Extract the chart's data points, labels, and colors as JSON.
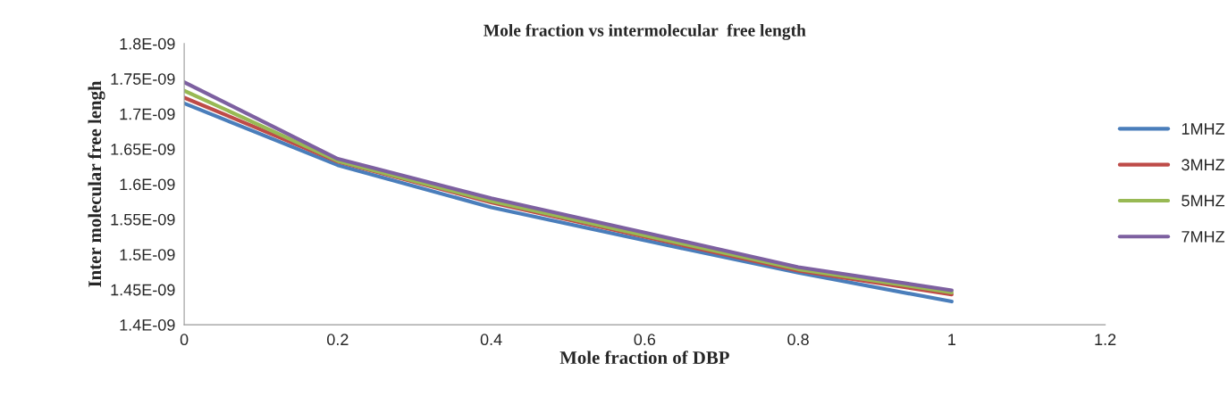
{
  "chart_data": {
    "type": "line",
    "title": "Mole fraction vs intermolecular  free length",
    "xlabel": "Mole fraction of DBP",
    "ylabel": "Inter molecular free lengh",
    "x": [
      0,
      0.2,
      0.4,
      0.6,
      0.8,
      1
    ],
    "series": [
      {
        "name": "1MHZ",
        "color": "#4a7ebb",
        "values": [
          1.715e-09,
          1.627e-09,
          1.567e-09,
          1.52e-09,
          1.474e-09,
          1.433e-09
        ]
      },
      {
        "name": "3MHZ",
        "color": "#be4b48",
        "values": [
          1.723e-09,
          1.632e-09,
          1.574e-09,
          1.525e-09,
          1.477e-09,
          1.443e-09
        ]
      },
      {
        "name": "5MHZ",
        "color": "#98b954",
        "values": [
          1.733e-09,
          1.633e-09,
          1.576e-09,
          1.527e-09,
          1.479e-09,
          1.446e-09
        ]
      },
      {
        "name": "7MHZ",
        "color": "#7d60a0",
        "values": [
          1.745e-09,
          1.636e-09,
          1.58e-09,
          1.531e-09,
          1.482e-09,
          1.449e-09
        ]
      }
    ],
    "xlim": [
      0,
      1.2
    ],
    "xticks": [
      0,
      0.2,
      0.4,
      0.6,
      0.8,
      1,
      1.2
    ],
    "ylim": [
      1.4e-09,
      1.8e-09
    ],
    "yticks": [
      {
        "value": 1.4e-09,
        "label": "1.4E-09"
      },
      {
        "value": 1.45e-09,
        "label": "1.45E-09"
      },
      {
        "value": 1.5e-09,
        "label": "1.5E-09"
      },
      {
        "value": 1.55e-09,
        "label": "1.55E-09"
      },
      {
        "value": 1.6e-09,
        "label": "1.6E-09"
      },
      {
        "value": 1.65e-09,
        "label": "1.65E-09"
      },
      {
        "value": 1.7e-09,
        "label": "1.7E-09"
      },
      {
        "value": 1.75e-09,
        "label": "1.75E-09"
      },
      {
        "value": 1.8e-09,
        "label": "1.8E-09"
      }
    ],
    "grid": false,
    "legend": "right",
    "marker": "none",
    "line_style": "solid"
  }
}
